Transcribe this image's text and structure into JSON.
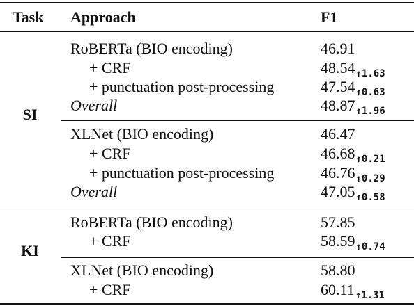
{
  "header": {
    "task": "Task",
    "approach": "Approach",
    "f1": "F1"
  },
  "groups": [
    {
      "task": "SI",
      "blocks": [
        {
          "rows": [
            {
              "approach": "RoBERTa (BIO encoding)",
              "f1": "46.91",
              "delta": ""
            },
            {
              "approach": "+ CRF",
              "f1": "48.54",
              "delta": "↑1.63"
            },
            {
              "approach": "+ punctuation post-processing",
              "f1": "47.54",
              "delta": "↑0.63"
            },
            {
              "approach": "Overall",
              "f1": "48.87",
              "delta": "↑1.96"
            }
          ]
        },
        {
          "rows": [
            {
              "approach": "XLNet (BIO encoding)",
              "f1": "46.47",
              "delta": ""
            },
            {
              "approach": "+ CRF",
              "f1": "46.68",
              "delta": "↑0.21"
            },
            {
              "approach": "+ punctuation post-processing",
              "f1": "46.76",
              "delta": "↑0.29"
            },
            {
              "approach": "Overall",
              "f1": "47.05",
              "delta": "↑0.58"
            }
          ]
        }
      ]
    },
    {
      "task": "KI",
      "blocks": [
        {
          "rows": [
            {
              "approach": "RoBERTa (BIO encoding)",
              "f1": "57.85",
              "delta": ""
            },
            {
              "approach": "+ CRF",
              "f1": "58.59",
              "delta": "↑0.74"
            }
          ]
        },
        {
          "rows": [
            {
              "approach": "XLNet (BIO encoding)",
              "f1": "58.80",
              "delta": ""
            },
            {
              "approach": "+ CRF",
              "f1": "60.11",
              "delta": "↑1.31"
            }
          ]
        }
      ]
    }
  ]
}
